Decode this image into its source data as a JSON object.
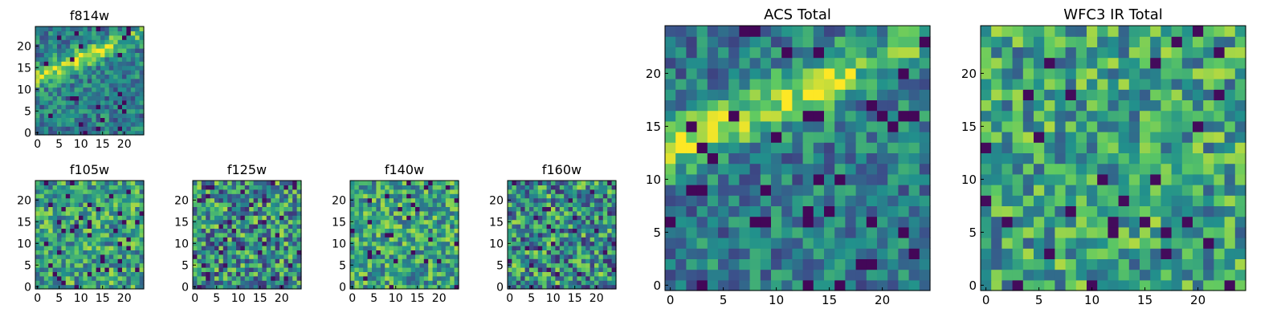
{
  "colormap": [
    "#440154",
    "#3b528b",
    "#21918c",
    "#5ec962",
    "#fde725"
  ],
  "frame_color": "#000000",
  "chart_data": [
    {
      "type": "heatmap",
      "title": "f814w",
      "xlim": [
        0,
        24
      ],
      "ylim": [
        0,
        24
      ],
      "xticks": [
        "0",
        "5",
        "10",
        "15",
        "20"
      ],
      "yticks": [
        "0",
        "5",
        "10",
        "15",
        "20"
      ],
      "grid": false,
      "pattern": "diagonal-streak",
      "seed": 11
    },
    {
      "type": "heatmap",
      "title": "f105w",
      "xlim": [
        0,
        24
      ],
      "ylim": [
        0,
        24
      ],
      "xticks": [
        "0",
        "5",
        "10",
        "15",
        "20"
      ],
      "yticks": [
        "0",
        "5",
        "10",
        "15",
        "20"
      ],
      "grid": false,
      "pattern": "noise-bright",
      "seed": 23
    },
    {
      "type": "heatmap",
      "title": "f125w",
      "xlim": [
        0,
        24
      ],
      "ylim": [
        0,
        24
      ],
      "xticks": [
        "0",
        "5",
        "10",
        "15",
        "20"
      ],
      "yticks": [
        "0",
        "5",
        "10",
        "15",
        "20"
      ],
      "grid": false,
      "pattern": "noise",
      "seed": 37
    },
    {
      "type": "heatmap",
      "title": "f140w",
      "xlim": [
        0,
        24
      ],
      "ylim": [
        0,
        24
      ],
      "xticks": [
        "0",
        "5",
        "10",
        "15",
        "20"
      ],
      "yticks": [
        "0",
        "5",
        "10",
        "15",
        "20"
      ],
      "grid": false,
      "pattern": "noise-bright",
      "seed": 41
    },
    {
      "type": "heatmap",
      "title": "f160w",
      "xlim": [
        0,
        24
      ],
      "ylim": [
        0,
        24
      ],
      "xticks": [
        "0",
        "5",
        "10",
        "15",
        "20"
      ],
      "yticks": [
        "0",
        "5",
        "10",
        "15",
        "20"
      ],
      "grid": false,
      "pattern": "noise",
      "seed": 53
    },
    {
      "type": "heatmap",
      "title": "ACS Total",
      "xlim": [
        0,
        24
      ],
      "ylim": [
        0,
        24
      ],
      "xticks": [
        "0",
        "5",
        "10",
        "15",
        "20"
      ],
      "yticks": [
        "0",
        "5",
        "10",
        "15",
        "20"
      ],
      "grid": false,
      "pattern": "diagonal-streak",
      "seed": 67
    },
    {
      "type": "heatmap",
      "title": "WFC3 IR Total",
      "xlim": [
        0,
        24
      ],
      "ylim": [
        0,
        24
      ],
      "xticks": [
        "0",
        "5",
        "10",
        "15",
        "20"
      ],
      "yticks": [
        "0",
        "5",
        "10",
        "15",
        "20"
      ],
      "grid": false,
      "pattern": "noise-bright",
      "seed": 79
    }
  ]
}
